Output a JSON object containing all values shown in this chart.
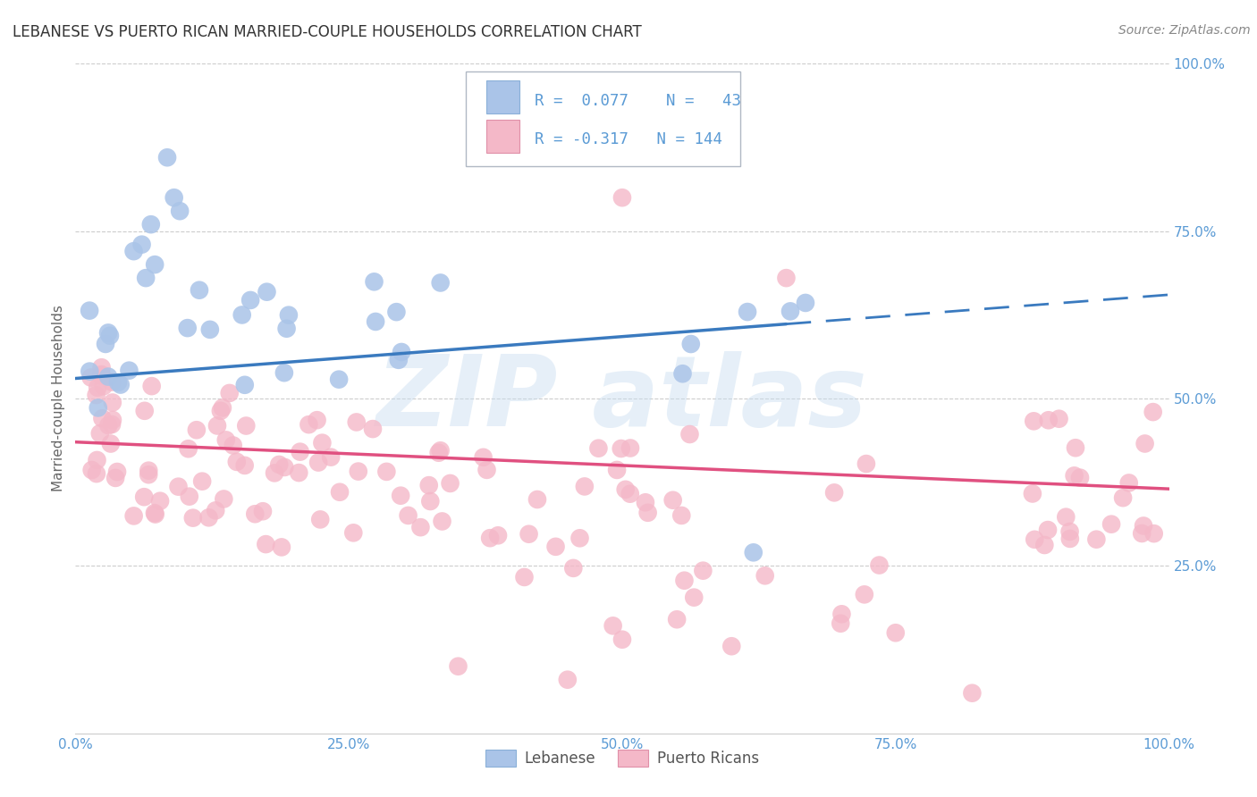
{
  "title": "LEBANESE VS PUERTO RICAN MARRIED-COUPLE HOUSEHOLDS CORRELATION CHART",
  "source": "Source: ZipAtlas.com",
  "ylabel": "Married-couple Households",
  "xlim": [
    0.0,
    1.0
  ],
  "ylim": [
    0.0,
    1.0
  ],
  "xtick_labels": [
    "0.0%",
    "",
    "",
    "",
    "",
    "25.0%",
    "",
    "",
    "",
    "",
    "50.0%",
    "",
    "",
    "",
    "",
    "75.0%",
    "",
    "",
    "",
    "",
    "100.0%"
  ],
  "xtick_vals": [
    0.0,
    0.05,
    0.1,
    0.15,
    0.2,
    0.25,
    0.3,
    0.35,
    0.4,
    0.45,
    0.5,
    0.55,
    0.6,
    0.65,
    0.7,
    0.75,
    0.8,
    0.85,
    0.9,
    0.95,
    1.0
  ],
  "ytick_vals_right": [
    0.25,
    0.5,
    0.75,
    1.0
  ],
  "ytick_labels_right": [
    "25.0%",
    "50.0%",
    "75.0%",
    "100.0%"
  ],
  "legend_labels": [
    "Lebanese",
    "Puerto Ricans"
  ],
  "legend_R": [
    "0.077",
    "-0.317"
  ],
  "legend_N": [
    "43",
    "144"
  ],
  "blue_color": "#aac4e8",
  "pink_color": "#f4b8c8",
  "blue_line_color": "#3a7abf",
  "pink_line_color": "#e05080",
  "tick_color": "#5b9bd5",
  "title_fontsize": 12,
  "label_fontsize": 11,
  "tick_fontsize": 11,
  "background_color": "#ffffff",
  "grid_color": "#cccccc",
  "blue_line_solid_end": 0.65,
  "blue_line_x0": 0.0,
  "blue_line_x1": 1.0,
  "blue_line_y0": 0.53,
  "blue_line_y1": 0.655,
  "pink_line_x0": 0.0,
  "pink_line_x1": 1.0,
  "pink_line_y0": 0.435,
  "pink_line_y1": 0.365
}
